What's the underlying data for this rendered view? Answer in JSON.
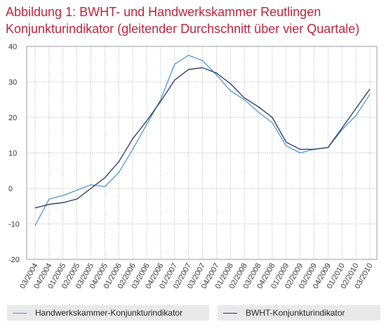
{
  "title_line1": "Abbildung 1: BWHT- und Handwerkskammer  Reutlingen",
  "title_line2": "Konjunkturindikator (gleitender Durchschnitt über vier Quartale)",
  "colors": {
    "title": "#b5213a",
    "hwk": "#4a96cc",
    "bwht": "#1f2f5f",
    "grid": "#b4b4b4"
  },
  "chart_data": {
    "type": "line",
    "title": "Abbildung 1: BWHT- und Handwerkskammer  Reutlingen Konjunkturindikator (gleitender Durchschnitt über vier Quartale)",
    "xlabel": "",
    "ylabel": "",
    "ylim": [
      -20,
      40
    ],
    "yticks": [
      "40",
      "30",
      "20",
      "10",
      "0",
      "-10",
      "-20"
    ],
    "ytick_values": [
      40,
      30,
      20,
      10,
      0,
      -10,
      -20
    ],
    "grid": true,
    "legend_position": "bottom",
    "categories": [
      "03/2004",
      "04/2004",
      "01/2005",
      "02/2005",
      "03/2005",
      "04/2005",
      "01/2006",
      "02/2006",
      "03/2006",
      "04/2006",
      "01/2007",
      "02/2007",
      "03/2007",
      "04/2007",
      "01/2008",
      "02/2008",
      "03/2008",
      "04/2008",
      "01/2009",
      "02/2009",
      "03/2009",
      "04/2009",
      "01/2010",
      "02/2010",
      "03/2010"
    ],
    "series": [
      {
        "name": "Handwerkskammer-Konjunkturindikator",
        "values": [
          -10.5,
          -3.0,
          -2.0,
          -0.5,
          1.0,
          0.5,
          4.5,
          11.0,
          18.0,
          25.0,
          35.0,
          37.5,
          36.0,
          32.0,
          27.5,
          25.0,
          21.5,
          18.5,
          12.0,
          10.0,
          11.0,
          11.5,
          16.5,
          20.5,
          26.5
        ]
      },
      {
        "name": "BWHT-Konjunkturindikator",
        "values": [
          -5.5,
          -4.5,
          -4.0,
          -3.0,
          0.0,
          3.0,
          7.5,
          14.0,
          19.0,
          24.5,
          30.5,
          33.5,
          34.0,
          32.5,
          29.5,
          25.5,
          23.0,
          20.0,
          13.0,
          11.0,
          11.0,
          11.5,
          17.0,
          22.5,
          28.0
        ]
      }
    ]
  }
}
